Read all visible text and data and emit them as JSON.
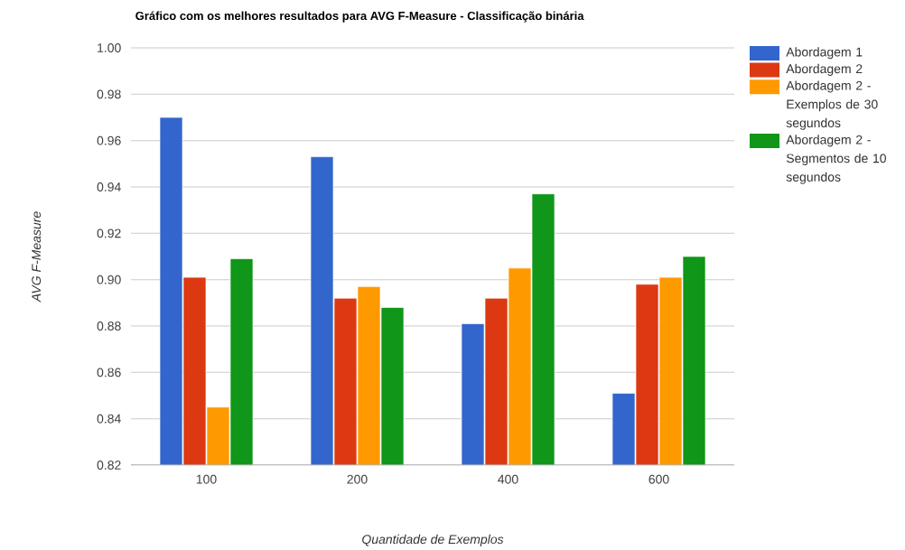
{
  "chart_data": {
    "type": "bar",
    "title": "Gráfico com os melhores resultados para AVG F-Measure - Classificação binária",
    "xlabel": "Quantidade de Exemplos",
    "ylabel": "AVG F-Measure",
    "categories": [
      "100",
      "200",
      "400",
      "600"
    ],
    "series": [
      {
        "name": "Abordagem 1",
        "color": "#3366cc",
        "values": [
          0.97,
          0.953,
          0.881,
          0.851
        ]
      },
      {
        "name": "Abordagem 2",
        "color": "#dc3912",
        "values": [
          0.901,
          0.892,
          0.892,
          0.898
        ]
      },
      {
        "name": "Abordagem 2 - Exemplos de 30 segundos",
        "color": "#ff9900",
        "values": [
          0.845,
          0.897,
          0.905,
          0.901
        ]
      },
      {
        "name": "Abordagem 2 - Segmentos de 10 segundos",
        "color": "#109618",
        "values": [
          0.909,
          0.888,
          0.937,
          0.91
        ]
      }
    ],
    "ylim": [
      0.82,
      1.0
    ],
    "yticks": [
      0.82,
      0.84,
      0.86,
      0.88,
      {
        "value": 0.9,
        "label": "0.90"
      },
      0.92,
      0.94,
      0.96,
      0.98,
      {
        "value": 1.0,
        "label": "1.00"
      }
    ],
    "grid": "y",
    "legend": "right"
  }
}
